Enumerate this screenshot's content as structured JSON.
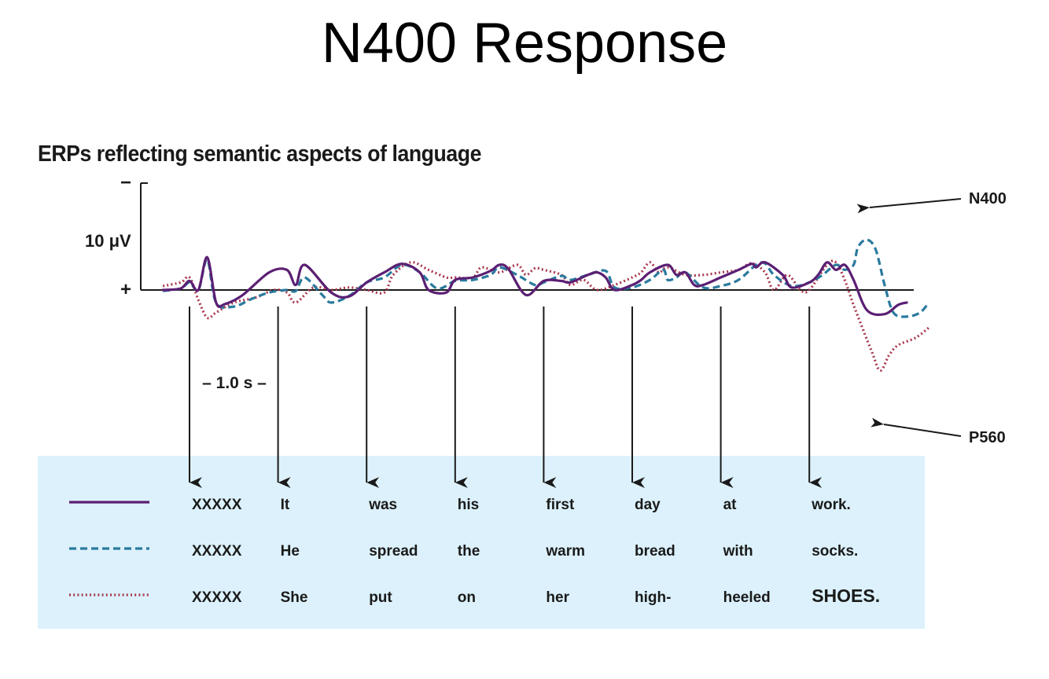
{
  "title": "N400 Response",
  "chart_data": {
    "type": "line",
    "subtitle": "ERPs reflecting semantic aspects of language",
    "y_axis": {
      "top_label": "−",
      "bottom_label": "+",
      "scale_label": "10 μV",
      "inverted": true
    },
    "time_scale_label": "–  1.0 s  –",
    "stimulus_onsets_s": [
      0,
      1,
      2,
      3,
      4,
      5,
      6,
      7
    ],
    "peak_labels": [
      "N400",
      "P560"
    ],
    "series": [
      {
        "color": "#5b1f73",
        "style": "solid",
        "words": [
          "XXXXX",
          "It",
          "was",
          "his",
          "first",
          "day",
          "at",
          "work."
        ],
        "points": [
          [
            -0.3,
            0
          ],
          [
            -0.1,
            0.3
          ],
          [
            0,
            1.8
          ],
          [
            0.1,
            0
          ],
          [
            0.2,
            6.5
          ],
          [
            0.3,
            -2.5
          ],
          [
            0.4,
            -2.8
          ],
          [
            0.6,
            -1
          ],
          [
            0.9,
            3.5
          ],
          [
            1.1,
            4
          ],
          [
            1.2,
            1
          ],
          [
            1.3,
            5
          ],
          [
            1.6,
            -0.5
          ],
          [
            1.8,
            -1.3
          ],
          [
            2,
            1.5
          ],
          [
            2.2,
            3.5
          ],
          [
            2.4,
            5.2
          ],
          [
            2.6,
            3.5
          ],
          [
            2.7,
            0
          ],
          [
            2.9,
            -0.5
          ],
          [
            3,
            2
          ],
          [
            3.2,
            2.5
          ],
          [
            3.4,
            3.8
          ],
          [
            3.5,
            5
          ],
          [
            3.6,
            4.2
          ],
          [
            3.8,
            -1
          ],
          [
            4,
            1.8
          ],
          [
            4.2,
            1.8
          ],
          [
            4.3,
            1.5
          ],
          [
            4.5,
            3
          ],
          [
            4.6,
            3.5
          ],
          [
            4.7,
            2.5
          ],
          [
            4.8,
            0
          ],
          [
            5,
            1
          ],
          [
            5.1,
            2
          ],
          [
            5.2,
            3.5
          ],
          [
            5.4,
            5
          ],
          [
            5.5,
            3
          ],
          [
            5.6,
            3.5
          ],
          [
            5.7,
            1
          ],
          [
            5.8,
            1
          ],
          [
            6,
            2.5
          ],
          [
            6.2,
            4
          ],
          [
            6.35,
            5.2
          ],
          [
            6.4,
            4.5
          ],
          [
            6.5,
            5.5
          ],
          [
            6.7,
            3
          ],
          [
            6.8,
            0.5
          ],
          [
            7,
            1.5
          ],
          [
            7.1,
            3
          ],
          [
            7.2,
            5.5
          ],
          [
            7.3,
            4
          ],
          [
            7.4,
            5
          ],
          [
            7.5,
            2
          ],
          [
            7.65,
            -4
          ],
          [
            7.85,
            -4.8
          ],
          [
            8,
            -3
          ],
          [
            8.1,
            -2.5
          ]
        ]
      },
      {
        "color": "#2a7a9e",
        "style": "dashed",
        "words": [
          "XXXXX",
          "He",
          "spread",
          "the",
          "warm",
          "bread",
          "with",
          "socks."
        ],
        "points": [
          [
            -0.3,
            -0.2
          ],
          [
            -0.1,
            0.3
          ],
          [
            0,
            1.5
          ],
          [
            0.1,
            0
          ],
          [
            0.2,
            6
          ],
          [
            0.3,
            -2.5
          ],
          [
            0.5,
            -3.3
          ],
          [
            0.7,
            -1.8
          ],
          [
            0.9,
            -0.5
          ],
          [
            1.1,
            0
          ],
          [
            1.2,
            -0.2
          ],
          [
            1.3,
            2.5
          ],
          [
            1.5,
            -1
          ],
          [
            1.6,
            -2.5
          ],
          [
            1.8,
            -1.2
          ],
          [
            2,
            1.5
          ],
          [
            2.2,
            2.5
          ],
          [
            2.4,
            5
          ],
          [
            2.6,
            3.5
          ],
          [
            2.8,
            0.3
          ],
          [
            3,
            1.8
          ],
          [
            3.2,
            2
          ],
          [
            3.4,
            3
          ],
          [
            3.5,
            4.5
          ],
          [
            3.7,
            3
          ],
          [
            3.9,
            1
          ],
          [
            4,
            1.5
          ],
          [
            4.2,
            2.8
          ],
          [
            4.3,
            2
          ],
          [
            4.5,
            3
          ],
          [
            4.7,
            3.8
          ],
          [
            4.8,
            0.5
          ],
          [
            5,
            0.5
          ],
          [
            5.2,
            2
          ],
          [
            5.35,
            4
          ],
          [
            5.4,
            2
          ],
          [
            5.5,
            2.5
          ],
          [
            5.6,
            3.5
          ],
          [
            5.8,
            0.5
          ],
          [
            6,
            0.8
          ],
          [
            6.2,
            2
          ],
          [
            6.4,
            5
          ],
          [
            6.5,
            5.3
          ],
          [
            6.6,
            3
          ],
          [
            6.8,
            0.8
          ],
          [
            7,
            1.5
          ],
          [
            7.15,
            3
          ],
          [
            7.3,
            5
          ],
          [
            7.4,
            4
          ],
          [
            7.5,
            5
          ],
          [
            7.55,
            8.5
          ],
          [
            7.65,
            10
          ],
          [
            7.75,
            8
          ],
          [
            7.85,
            1
          ],
          [
            7.95,
            -4.5
          ],
          [
            8.1,
            -5.3
          ],
          [
            8.25,
            -4.5
          ],
          [
            8.35,
            -2.5
          ]
        ]
      },
      {
        "color": "#a8394f",
        "style": "dotted",
        "words": [
          "XXXXX",
          "She",
          "put",
          "on",
          "her",
          "high-",
          "heeled",
          "SHOES."
        ],
        "points": [
          [
            -0.3,
            0.8
          ],
          [
            -0.1,
            1.5
          ],
          [
            0,
            2.5
          ],
          [
            0.1,
            -2
          ],
          [
            0.2,
            -5.5
          ],
          [
            0.3,
            -4.5
          ],
          [
            0.5,
            -2.5
          ],
          [
            0.75,
            -1.5
          ],
          [
            0.95,
            0
          ],
          [
            1.1,
            -0.5
          ],
          [
            1.2,
            -2.5
          ],
          [
            1.4,
            0.5
          ],
          [
            1.6,
            0
          ],
          [
            1.8,
            0.5
          ],
          [
            2,
            0
          ],
          [
            2.2,
            -0.5
          ],
          [
            2.3,
            3
          ],
          [
            2.5,
            5.5
          ],
          [
            2.7,
            4
          ],
          [
            2.9,
            2.5
          ],
          [
            3,
            2.5
          ],
          [
            3.2,
            2.5
          ],
          [
            3.3,
            4.5
          ],
          [
            3.5,
            3.5
          ],
          [
            3.7,
            5
          ],
          [
            3.8,
            3
          ],
          [
            3.9,
            4.3
          ],
          [
            4,
            4
          ],
          [
            4.2,
            3
          ],
          [
            4.3,
            1
          ],
          [
            4.45,
            2
          ],
          [
            4.6,
            0
          ],
          [
            4.8,
            1
          ],
          [
            5,
            2.5
          ],
          [
            5.1,
            3.5
          ],
          [
            5.2,
            5.5
          ],
          [
            5.3,
            3.5
          ],
          [
            5.4,
            4.5
          ],
          [
            5.6,
            3
          ],
          [
            5.8,
            3
          ],
          [
            6,
            3.5
          ],
          [
            6.2,
            4
          ],
          [
            6.35,
            5.3
          ],
          [
            6.5,
            3.5
          ],
          [
            6.6,
            0
          ],
          [
            6.75,
            3
          ],
          [
            6.9,
            0
          ],
          [
            7,
            0
          ],
          [
            7.2,
            5
          ],
          [
            7.3,
            5.5
          ],
          [
            7.4,
            2
          ],
          [
            7.5,
            -3
          ],
          [
            7.7,
            -12
          ],
          [
            7.8,
            -16
          ],
          [
            7.9,
            -13
          ],
          [
            8,
            -11
          ],
          [
            8.2,
            -9.5
          ],
          [
            8.35,
            -7.5
          ]
        ]
      }
    ]
  }
}
